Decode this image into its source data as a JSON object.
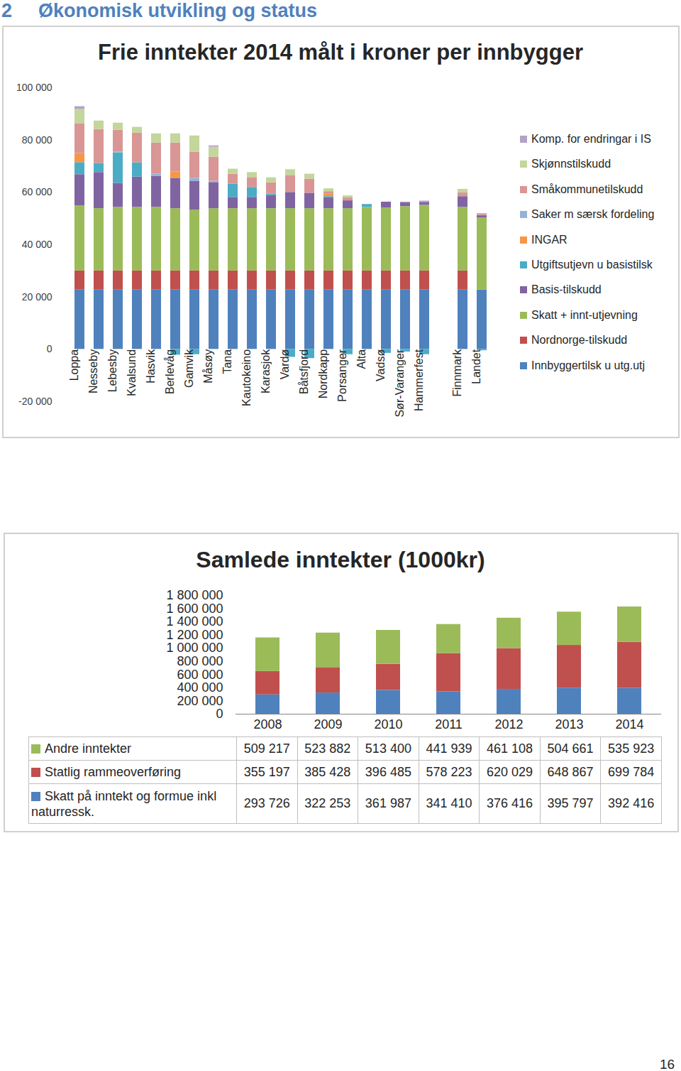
{
  "page": {
    "section_number": "2",
    "section_title": "Økonomisk utvikling og status",
    "page_number": "16"
  },
  "chart_data": [
    {
      "type": "bar",
      "stacked": true,
      "title": "Frie inntekter 2014 målt i kroner per innbygger",
      "categories": [
        "Loppa",
        "Nesseby",
        "Lebesby",
        "Kvalsund",
        "Hasvik",
        "Berlevåg",
        "Gamvik",
        "Måsøy",
        "Tana",
        "Kautokeino",
        "Karasjok",
        "Vardø",
        "Båtsfjord",
        "Nordkapp",
        "Porsanger",
        "Alta",
        "Vadsø",
        "Sør-Varanger",
        "Hammerfest",
        null,
        "Finnmark",
        "Landet"
      ],
      "series": [
        {
          "name": "Innbyggertilsk u utg.utj",
          "color": "#4f81bd",
          "values": [
            22700,
            22700,
            22700,
            22700,
            22700,
            22700,
            22700,
            22700,
            22700,
            22700,
            22700,
            22700,
            22700,
            22700,
            22700,
            22700,
            22700,
            22700,
            22700,
            null,
            22700,
            22700
          ]
        },
        {
          "name": "Nordnorge-tilskudd",
          "color": "#c0504d",
          "values": [
            7300,
            7300,
            7300,
            7300,
            7300,
            7300,
            7300,
            7300,
            7300,
            7300,
            7300,
            7300,
            7300,
            7300,
            7300,
            7300,
            7300,
            7300,
            7300,
            null,
            7300,
            0
          ]
        },
        {
          "name": "Skatt + innt-utjevning",
          "color": "#9bbb59",
          "values": [
            24900,
            23800,
            24300,
            24300,
            24300,
            23800,
            23200,
            23800,
            23800,
            23800,
            23800,
            23800,
            23800,
            23800,
            23800,
            24300,
            24100,
            24600,
            25100,
            null,
            24300,
            27600
          ]
        },
        {
          "name": "Basis-tilskudd",
          "color": "#8064a2",
          "values": [
            11900,
            13800,
            9200,
            11600,
            11900,
            11600,
            11100,
            10000,
            4300,
            4300,
            5100,
            6200,
            5900,
            4100,
            3000,
            0,
            2200,
            1400,
            1100,
            null,
            4100,
            800
          ]
        },
        {
          "name": "Utgiftsutjevn u basistilsk",
          "color": "#4bacc6",
          "values": [
            4600,
            3500,
            11600,
            5400,
            0,
            -2200,
            -2000,
            0,
            5100,
            3800,
            500,
            -3000,
            -3500,
            500,
            -2000,
            1100,
            -1500,
            -1000,
            -2000,
            null,
            0,
            -500
          ]
        },
        {
          "name": "INGAR",
          "color": "#f79646",
          "values": [
            3500,
            0,
            0,
            0,
            0,
            2400,
            0,
            0,
            0,
            0,
            0,
            0,
            0,
            1100,
            0,
            0,
            0,
            0,
            0,
            null,
            0,
            0
          ]
        },
        {
          "name": "Saker m særsk fordeling",
          "color": "#95b3d7",
          "values": [
            0,
            0,
            300,
            0,
            800,
            0,
            1100,
            500,
            0,
            0,
            0,
            0,
            0,
            0,
            0,
            0,
            0,
            0,
            0,
            null,
            0,
            0
          ]
        },
        {
          "name": "Småkommunetilskudd",
          "color": "#d99694",
          "values": [
            11400,
            13000,
            8400,
            11400,
            11900,
            11100,
            10000,
            9200,
            3800,
            3800,
            4300,
            6500,
            5400,
            800,
            1100,
            0,
            0,
            0,
            0,
            null,
            1400,
            500
          ]
        },
        {
          "name": "Skjønnstilskudd",
          "color": "#c3d69b",
          "values": [
            5400,
            3200,
            2700,
            2200,
            3500,
            3500,
            6200,
            3800,
            1900,
            1900,
            1900,
            2200,
            1900,
            1100,
            800,
            0,
            0,
            0,
            0,
            null,
            1400,
            0
          ]
        },
        {
          "name": "Komp. for endringar i IS",
          "color": "#b3a2c7",
          "values": [
            1100,
            0,
            0,
            0,
            0,
            0,
            0,
            500,
            0,
            0,
            0,
            0,
            0,
            0,
            0,
            0,
            0,
            300,
            500,
            null,
            0,
            300
          ]
        }
      ],
      "ylim": [
        -20000,
        100000
      ],
      "yticks": [
        {
          "value": -20000,
          "label": "-20 000"
        },
        0,
        {
          "value": 20000,
          "label": "20 000"
        },
        {
          "value": 40000,
          "label": "40 000"
        },
        {
          "value": 60000,
          "label": "60 000"
        },
        {
          "value": 80000,
          "label": "80 000"
        },
        {
          "value": 100000,
          "label": "100 000"
        }
      ],
      "grid": false,
      "legend": "right"
    },
    {
      "type": "bar",
      "stacked": true,
      "title": "Samlede inntekter (1000kr)",
      "categories": [
        "2008",
        "2009",
        "2010",
        "2011",
        "2012",
        "2013",
        "2014"
      ],
      "series": [
        {
          "name": "Andre inntekter",
          "color": "#9bbb59",
          "values": [
            509217,
            523882,
            513400,
            441939,
            461108,
            504661,
            535923
          ],
          "value_labels": [
            "509 217",
            "523 882",
            "513 400",
            "441 939",
            "461 108",
            "504 661",
            "535 923"
          ]
        },
        {
          "name": "Statlig rammeoverføring",
          "color": "#c0504d",
          "values": [
            355197,
            385428,
            396485,
            578223,
            620029,
            648867,
            699784
          ],
          "value_labels": [
            "355 197",
            "385 428",
            "396 485",
            "578 223",
            "620 029",
            "648 867",
            "699 784"
          ]
        },
        {
          "name": "Skatt på inntekt og formue inkl naturressk.",
          "color": "#4f81bd",
          "values": [
            293726,
            322253,
            361987,
            341410,
            376416,
            395797,
            392416
          ],
          "value_labels": [
            "293 726",
            "322 253",
            "361 987",
            "341 410",
            "376 416",
            "395 797",
            "392 416"
          ]
        }
      ],
      "ylim": [
        0,
        1800000
      ],
      "yticks": [
        0,
        {
          "value": 200000,
          "label": "200 000"
        },
        {
          "value": 400000,
          "label": "400 000"
        },
        {
          "value": 600000,
          "label": "600 000"
        },
        {
          "value": 800000,
          "label": "800 000"
        },
        {
          "value": 1000000,
          "label": "1 000 000"
        },
        {
          "value": 1200000,
          "label": "1 200 000"
        },
        {
          "value": 1400000,
          "label": "1 400 000"
        },
        {
          "value": 1600000,
          "label": "1 600 000"
        },
        {
          "value": 1800000,
          "label": "1 800 000"
        }
      ],
      "grid": false,
      "legend": "bottom"
    }
  ]
}
